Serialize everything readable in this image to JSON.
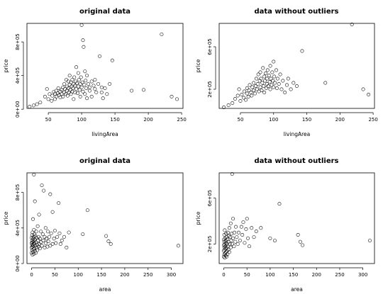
{
  "chart_data": [
    {
      "type": "scatter",
      "title": "original data",
      "xlabel": "livingArea",
      "ylabel": "price",
      "xticks": [
        "50",
        "100",
        "150",
        "200",
        "250"
      ],
      "yticks": [
        "0e+00",
        "4e+05",
        "8e+05"
      ],
      "xlim": [
        18,
        252
      ],
      "ylim": [
        10000,
        1020000
      ],
      "grid": false,
      "legend": "none",
      "points": [
        [
          22,
          30000
        ],
        [
          28,
          45000
        ],
        [
          33,
          60000
        ],
        [
          38,
          80000
        ],
        [
          45,
          150000
        ],
        [
          48,
          240000
        ],
        [
          50,
          120000
        ],
        [
          52,
          180000
        ],
        [
          55,
          100000
        ],
        [
          56,
          160000
        ],
        [
          58,
          205000
        ],
        [
          60,
          185000
        ],
        [
          60,
          120000
        ],
        [
          62,
          220000
        ],
        [
          62,
          150000
        ],
        [
          64,
          190000
        ],
        [
          65,
          250000
        ],
        [
          66,
          170000
        ],
        [
          68,
          140000
        ],
        [
          68,
          210000
        ],
        [
          70,
          230000
        ],
        [
          70,
          180000
        ],
        [
          72,
          260000
        ],
        [
          72,
          150000
        ],
        [
          74,
          200000
        ],
        [
          74,
          300000
        ],
        [
          75,
          240000
        ],
        [
          76,
          180000
        ],
        [
          77,
          350000
        ],
        [
          78,
          270000
        ],
        [
          78,
          220000
        ],
        [
          79,
          160000
        ],
        [
          80,
          330000
        ],
        [
          80,
          250000
        ],
        [
          81,
          200000
        ],
        [
          82,
          290000
        ],
        [
          82,
          400000
        ],
        [
          83,
          230000
        ],
        [
          84,
          320000
        ],
        [
          84,
          180000
        ],
        [
          85,
          270000
        ],
        [
          86,
          350000
        ],
        [
          86,
          210000
        ],
        [
          87,
          250000
        ],
        [
          88,
          300000
        ],
        [
          88,
          120000
        ],
        [
          89,
          380000
        ],
        [
          90,
          280000
        ],
        [
          90,
          200000
        ],
        [
          91,
          330000
        ],
        [
          92,
          240000
        ],
        [
          92,
          500000
        ],
        [
          93,
          310000
        ],
        [
          94,
          190000
        ],
        [
          95,
          270000
        ],
        [
          95,
          430000
        ],
        [
          96,
          350000
        ],
        [
          97,
          230000
        ],
        [
          98,
          300000
        ],
        [
          98,
          150000
        ],
        [
          99,
          380000
        ],
        [
          100,
          260000
        ],
        [
          100,
          1000000
        ],
        [
          101,
          320000
        ],
        [
          102,
          210000
        ],
        [
          102,
          820000
        ],
        [
          103,
          740000
        ],
        [
          104,
          290000
        ],
        [
          105,
          450000
        ],
        [
          105,
          180000
        ],
        [
          106,
          340000
        ],
        [
          107,
          250000
        ],
        [
          108,
          400000
        ],
        [
          108,
          130000
        ],
        [
          110,
          300000
        ],
        [
          112,
          220000
        ],
        [
          112,
          260000
        ],
        [
          115,
          330000
        ],
        [
          115,
          150000
        ],
        [
          118,
          280000
        ],
        [
          120,
          240000
        ],
        [
          120,
          350000
        ],
        [
          122,
          200000
        ],
        [
          125,
          300000
        ],
        [
          127,
          630000
        ],
        [
          130,
          260000
        ],
        [
          130,
          200000
        ],
        [
          132,
          130000
        ],
        [
          135,
          250000
        ],
        [
          138,
          180000
        ],
        [
          142,
          300000
        ],
        [
          146,
          580000
        ],
        [
          175,
          220000
        ],
        [
          193,
          230000
        ],
        [
          220,
          890000
        ],
        [
          235,
          150000
        ],
        [
          243,
          120000
        ]
      ]
    },
    {
      "type": "scatter",
      "title": "data without outliers",
      "xlabel": "livingArea",
      "ylabel": "price",
      "xticks": [
        "50",
        "100",
        "150",
        "200",
        "250"
      ],
      "yticks": [
        "2e+05",
        "6e+05"
      ],
      "xlim": [
        18,
        252
      ],
      "ylim": [
        20000,
        820000
      ],
      "grid": false,
      "legend": "none",
      "points": [
        [
          25,
          30000
        ],
        [
          32,
          50000
        ],
        [
          38,
          70000
        ],
        [
          42,
          110000
        ],
        [
          46,
          140000
        ],
        [
          48,
          200000
        ],
        [
          50,
          90000
        ],
        [
          52,
          150000
        ],
        [
          55,
          120000
        ],
        [
          56,
          180000
        ],
        [
          58,
          100000
        ],
        [
          60,
          160000
        ],
        [
          60,
          210000
        ],
        [
          62,
          130000
        ],
        [
          63,
          190000
        ],
        [
          64,
          240000
        ],
        [
          66,
          170000
        ],
        [
          67,
          140000
        ],
        [
          68,
          220000
        ],
        [
          70,
          190000
        ],
        [
          70,
          260000
        ],
        [
          72,
          160000
        ],
        [
          73,
          230000
        ],
        [
          74,
          300000
        ],
        [
          75,
          200000
        ],
        [
          76,
          250000
        ],
        [
          77,
          340000
        ],
        [
          78,
          180000
        ],
        [
          79,
          280000
        ],
        [
          80,
          220000
        ],
        [
          80,
          360000
        ],
        [
          81,
          300000
        ],
        [
          82,
          190000
        ],
        [
          83,
          260000
        ],
        [
          84,
          400000
        ],
        [
          85,
          230000
        ],
        [
          86,
          320000
        ],
        [
          86,
          170000
        ],
        [
          87,
          280000
        ],
        [
          88,
          350000
        ],
        [
          89,
          210000
        ],
        [
          90,
          300000
        ],
        [
          90,
          250000
        ],
        [
          91,
          380000
        ],
        [
          92,
          230000
        ],
        [
          93,
          330000
        ],
        [
          94,
          270000
        ],
        [
          95,
          200000
        ],
        [
          95,
          420000
        ],
        [
          96,
          300000
        ],
        [
          97,
          240000
        ],
        [
          98,
          360000
        ],
        [
          99,
          280000
        ],
        [
          100,
          220000
        ],
        [
          100,
          460000
        ],
        [
          101,
          320000
        ],
        [
          102,
          260000
        ],
        [
          104,
          380000
        ],
        [
          105,
          210000
        ],
        [
          106,
          300000
        ],
        [
          108,
          250000
        ],
        [
          110,
          340000
        ],
        [
          112,
          200000
        ],
        [
          114,
          280000
        ],
        [
          117,
          170000
        ],
        [
          120,
          240000
        ],
        [
          122,
          300000
        ],
        [
          126,
          200000
        ],
        [
          130,
          260000
        ],
        [
          135,
          230000
        ],
        [
          143,
          560000
        ],
        [
          178,
          260000
        ],
        [
          218,
          810000
        ],
        [
          235,
          200000
        ],
        [
          243,
          150000
        ]
      ]
    },
    {
      "type": "scatter",
      "title": "original data",
      "xlabel": "area",
      "ylabel": "price",
      "xticks": [
        "0",
        "50",
        "100",
        "150",
        "200",
        "250",
        "300"
      ],
      "yticks": [
        "0e+00",
        "4e+05",
        "8e+05"
      ],
      "xlim": [
        -10,
        325
      ],
      "ylim": [
        0,
        1020000
      ],
      "grid": false,
      "legend": "none",
      "points": [
        [
          0,
          120000
        ],
        [
          0,
          180000
        ],
        [
          0,
          230000
        ],
        [
          0,
          290000
        ],
        [
          1,
          150000
        ],
        [
          1,
          210000
        ],
        [
          1,
          260000
        ],
        [
          1,
          320000
        ],
        [
          2,
          100000
        ],
        [
          2,
          190000
        ],
        [
          2,
          240000
        ],
        [
          2,
          350000
        ],
        [
          3,
          130000
        ],
        [
          3,
          200000
        ],
        [
          3,
          280000
        ],
        [
          3,
          500000
        ],
        [
          4,
          160000
        ],
        [
          4,
          220000
        ],
        [
          4,
          300000
        ],
        [
          5,
          110000
        ],
        [
          5,
          250000
        ],
        [
          5,
          380000
        ],
        [
          5,
          1000000
        ],
        [
          6,
          170000
        ],
        [
          6,
          230000
        ],
        [
          6,
          330000
        ],
        [
          7,
          140000
        ],
        [
          7,
          270000
        ],
        [
          7,
          700000
        ],
        [
          8,
          200000
        ],
        [
          8,
          310000
        ],
        [
          9,
          120000
        ],
        [
          9,
          240000
        ],
        [
          10,
          180000
        ],
        [
          10,
          290000
        ],
        [
          10,
          360000
        ],
        [
          12,
          210000
        ],
        [
          12,
          150000
        ],
        [
          13,
          420000
        ],
        [
          14,
          260000
        ],
        [
          15,
          300000
        ],
        [
          15,
          190000
        ],
        [
          16,
          220000
        ],
        [
          16,
          550000
        ],
        [
          18,
          280000
        ],
        [
          18,
          170000
        ],
        [
          20,
          240000
        ],
        [
          20,
          360000
        ],
        [
          22,
          200000
        ],
        [
          22,
          880000
        ],
        [
          24,
          330000
        ],
        [
          25,
          260000
        ],
        [
          26,
          820000
        ],
        [
          28,
          300000
        ],
        [
          28,
          180000
        ],
        [
          30,
          230000
        ],
        [
          30,
          400000
        ],
        [
          32,
          280000
        ],
        [
          34,
          190000
        ],
        [
          35,
          360000
        ],
        [
          36,
          250000
        ],
        [
          38,
          300000
        ],
        [
          40,
          200000
        ],
        [
          40,
          780000
        ],
        [
          42,
          340000
        ],
        [
          45,
          220000
        ],
        [
          45,
          580000
        ],
        [
          48,
          280000
        ],
        [
          50,
          370000
        ],
        [
          52,
          230000
        ],
        [
          55,
          300000
        ],
        [
          58,
          680000
        ],
        [
          60,
          340000
        ],
        [
          62,
          220000
        ],
        [
          65,
          260000
        ],
        [
          70,
          300000
        ],
        [
          75,
          180000
        ],
        [
          80,
          350000
        ],
        [
          110,
          330000
        ],
        [
          120,
          600000
        ],
        [
          160,
          310000
        ],
        [
          165,
          250000
        ],
        [
          170,
          220000
        ],
        [
          315,
          200000
        ]
      ]
    },
    {
      "type": "scatter",
      "title": "data without outliers",
      "xlabel": "area",
      "ylabel": "price",
      "xticks": [
        "0",
        "50",
        "100",
        "150",
        "200",
        "250",
        "300"
      ],
      "yticks": [
        "2e+05",
        "6e+05"
      ],
      "xlim": [
        -10,
        325
      ],
      "ylim": [
        30000,
        820000
      ],
      "grid": false,
      "legend": "none",
      "points": [
        [
          0,
          90000
        ],
        [
          0,
          140000
        ],
        [
          0,
          190000
        ],
        [
          0,
          240000
        ],
        [
          1,
          110000
        ],
        [
          1,
          170000
        ],
        [
          1,
          220000
        ],
        [
          1,
          280000
        ],
        [
          2,
          80000
        ],
        [
          2,
          150000
        ],
        [
          2,
          200000
        ],
        [
          2,
          320000
        ],
        [
          3,
          120000
        ],
        [
          3,
          180000
        ],
        [
          3,
          250000
        ],
        [
          4,
          100000
        ],
        [
          4,
          160000
        ],
        [
          4,
          230000
        ],
        [
          5,
          130000
        ],
        [
          5,
          210000
        ],
        [
          5,
          290000
        ],
        [
          6,
          90000
        ],
        [
          6,
          170000
        ],
        [
          6,
          260000
        ],
        [
          7,
          140000
        ],
        [
          7,
          200000
        ],
        [
          8,
          110000
        ],
        [
          8,
          240000
        ],
        [
          9,
          180000
        ],
        [
          9,
          300000
        ],
        [
          10,
          150000
        ],
        [
          10,
          220000
        ],
        [
          11,
          270000
        ],
        [
          12,
          130000
        ],
        [
          12,
          340000
        ],
        [
          13,
          200000
        ],
        [
          14,
          260000
        ],
        [
          15,
          170000
        ],
        [
          15,
          380000
        ],
        [
          16,
          230000
        ],
        [
          17,
          290000
        ],
        [
          18,
          200000
        ],
        [
          18,
          810000
        ],
        [
          20,
          250000
        ],
        [
          20,
          420000
        ],
        [
          22,
          180000
        ],
        [
          23,
          300000
        ],
        [
          25,
          220000
        ],
        [
          26,
          350000
        ],
        [
          28,
          260000
        ],
        [
          30,
          200000
        ],
        [
          32,
          300000
        ],
        [
          35,
          230000
        ],
        [
          38,
          350000
        ],
        [
          40,
          280000
        ],
        [
          42,
          390000
        ],
        [
          45,
          210000
        ],
        [
          48,
          330000
        ],
        [
          50,
          420000
        ],
        [
          52,
          250000
        ],
        [
          55,
          180000
        ],
        [
          60,
          340000
        ],
        [
          65,
          260000
        ],
        [
          70,
          310000
        ],
        [
          80,
          340000
        ],
        [
          100,
          250000
        ],
        [
          110,
          230000
        ],
        [
          120,
          550000
        ],
        [
          160,
          280000
        ],
        [
          165,
          220000
        ],
        [
          170,
          190000
        ],
        [
          315,
          230000
        ]
      ]
    }
  ]
}
